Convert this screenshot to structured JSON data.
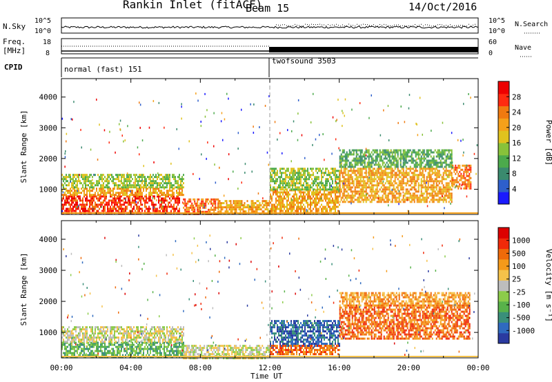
{
  "header": {
    "station": "Rankin Inlet (fitACF)",
    "beam": "Beam 15",
    "date": "14/Oct/2016"
  },
  "strips": {
    "nsky": {
      "label": "N.Sky",
      "top_tick": "10^5",
      "bottom_tick": "10^0",
      "right_top": "10^5",
      "right_bottom": "10^0",
      "right_label": "N.Search"
    },
    "freq": {
      "label_line1": "Freq.",
      "label_line2": "[MHz]",
      "top_tick": "18",
      "bottom_tick": "8",
      "right_top": "60",
      "right_bottom": "0",
      "right_label": "Nave"
    },
    "cpid": {
      "label": "CPID",
      "segments": [
        {
          "name": "normal (fast) 151",
          "start_hour": 0
        },
        {
          "name": "twofsound 3503",
          "start_hour": 12
        }
      ]
    }
  },
  "chart_data": [
    {
      "type": "heatmap",
      "title": "Power",
      "ylabel": "Slant Range [km]",
      "xlabel": "",
      "x_range_hours": [
        0,
        24
      ],
      "ylim": [
        180,
        4600
      ],
      "yticks": [
        "1000",
        "2000",
        "3000",
        "4000"
      ],
      "colorbar": {
        "label": "Power [dB]",
        "ticks": [
          "4",
          "8",
          "12",
          "16",
          "20",
          "24",
          "28"
        ],
        "range": [
          0,
          32
        ],
        "colors": [
          "#1a1aff",
          "#2e5fcc",
          "#3a8a6e",
          "#4caa4c",
          "#88c23a",
          "#e0c21e",
          "#f5a01a",
          "#f07a10",
          "#ff2a10",
          "#ee0000"
        ]
      },
      "regions": [
        {
          "x": [
            0,
            6.8
          ],
          "y": [
            200,
            800
          ],
          "level": 30
        },
        {
          "x": [
            0,
            7
          ],
          "y": [
            800,
            1050
          ],
          "level": 21
        },
        {
          "x": [
            0,
            7
          ],
          "y": [
            1050,
            1500
          ],
          "level": 13
        },
        {
          "x": [
            7,
            9
          ],
          "y": [
            200,
            700
          ],
          "level": 24
        },
        {
          "x": [
            9,
            12
          ],
          "y": [
            200,
            650
          ],
          "level": 20
        },
        {
          "x": [
            12,
            16
          ],
          "y": [
            200,
            1000
          ],
          "level": 23
        },
        {
          "x": [
            12,
            16
          ],
          "y": [
            1000,
            1700
          ],
          "level": 15
        },
        {
          "x": [
            16,
            22.5
          ],
          "y": [
            600,
            1700
          ],
          "level": 22
        },
        {
          "x": [
            16,
            22.5
          ],
          "y": [
            1700,
            2300
          ],
          "level": 12
        },
        {
          "x": [
            22.5,
            23.6
          ],
          "y": [
            1000,
            1800
          ],
          "level": 26
        }
      ]
    },
    {
      "type": "heatmap",
      "title": "Velocity",
      "ylabel": "Slant Range [km]",
      "xlabel": "Time UT",
      "x_range_hours": [
        0,
        24
      ],
      "ylim": [
        180,
        4600
      ],
      "yticks": [
        "1000",
        "2000",
        "3000",
        "4000"
      ],
      "colorbar": {
        "label": "Velocity [m s⁻¹]",
        "ticks": [
          "1000",
          "500",
          "100",
          "25",
          "-25",
          "-100",
          "-500",
          "-1000"
        ],
        "colors": [
          "#2a3aa0",
          "#2f6abf",
          "#3a8f7a",
          "#58b24a",
          "#8ccc4a",
          "#bdbdbd",
          "#f5c24a",
          "#f59a1a",
          "#ef6a0a",
          "#f02a0a",
          "#dd0000"
        ]
      },
      "regions": [
        {
          "x": [
            0,
            7
          ],
          "y": [
            200,
            700
          ],
          "level": 3
        },
        {
          "x": [
            0,
            7
          ],
          "y": [
            700,
            1200
          ],
          "level": 5
        },
        {
          "x": [
            7,
            12
          ],
          "y": [
            200,
            600
          ],
          "level": 5
        },
        {
          "x": [
            12,
            16
          ],
          "y": [
            600,
            1400
          ],
          "level": 1
        },
        {
          "x": [
            12,
            16
          ],
          "y": [
            300,
            600
          ],
          "level": 8
        },
        {
          "x": [
            16,
            23.5
          ],
          "y": [
            800,
            1900
          ],
          "level": 8
        },
        {
          "x": [
            16,
            23.5
          ],
          "y": [
            1900,
            2300
          ],
          "level": 7
        }
      ]
    }
  ],
  "x_axis": {
    "ticks": [
      "00:00",
      "04:00",
      "08:00",
      "12:00",
      "16:00",
      "20:00",
      "00:00"
    ],
    "label": "Time UT"
  }
}
